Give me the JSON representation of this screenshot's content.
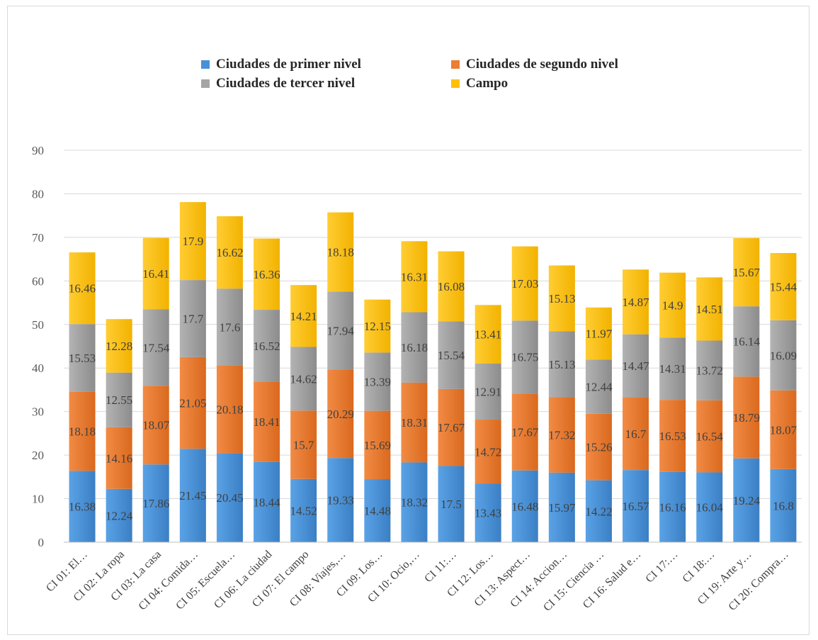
{
  "chart_data": {
    "type": "bar",
    "stacked": true,
    "title": "",
    "xlabel": "",
    "ylabel": "",
    "ylim": [
      0,
      90
    ],
    "yticks": [
      0,
      10,
      20,
      30,
      40,
      50,
      60,
      70,
      80,
      90
    ],
    "grid": true,
    "legend_position": "top",
    "categories": [
      "CI 01: El…",
      "CI 02: La ropa",
      "CI 03: La casa",
      "CI 04: Comida…",
      "CI 05: Escuela…",
      "CI 06: La ciudad",
      "CI 07: El campo",
      "CI 08: Viajes,…",
      "CI 09: Los…",
      "CI 10: Ocio,…",
      "CI 11:…",
      "CI 12: Los…",
      "CI 13: Aspect…",
      "CI 14: Accion…",
      "CI 15: Ciencia …",
      "CI 16: Salud e…",
      "CI 17:…",
      "CI 18:…",
      "CI 19: Arte y…",
      "CI 20: Compra…"
    ],
    "series": [
      {
        "name": "Ciudades de primer nivel",
        "color": "#4a90d9",
        "values": [
          16.38,
          12.24,
          17.86,
          21.45,
          20.45,
          18.44,
          14.52,
          19.33,
          14.48,
          18.32,
          17.5,
          13.43,
          16.48,
          15.97,
          14.22,
          16.57,
          16.16,
          16.04,
          19.24,
          16.8
        ]
      },
      {
        "name": "Ciudades de segundo nivel",
        "color": "#ed7d31",
        "values": [
          18.18,
          14.16,
          18.07,
          21.05,
          20.18,
          18.41,
          15.7,
          20.29,
          15.69,
          18.31,
          17.67,
          14.72,
          17.67,
          17.32,
          15.26,
          16.7,
          16.53,
          16.54,
          18.79,
          18.07
        ]
      },
      {
        "name": "Ciudades de tercer nivel",
        "color": "#a5a5a5",
        "values": [
          15.53,
          12.55,
          17.54,
          17.7,
          17.6,
          16.52,
          14.62,
          17.94,
          13.39,
          16.18,
          15.54,
          12.91,
          16.75,
          15.13,
          12.44,
          14.47,
          14.31,
          13.72,
          16.14,
          16.09
        ]
      },
      {
        "name": "Campo",
        "color": "#ffc000",
        "values": [
          16.46,
          12.28,
          16.41,
          17.9,
          16.62,
          16.36,
          14.21,
          18.18,
          12.15,
          16.31,
          16.08,
          13.41,
          17.03,
          15.13,
          11.97,
          14.87,
          14.9,
          14.51,
          15.67,
          15.44
        ]
      }
    ]
  }
}
